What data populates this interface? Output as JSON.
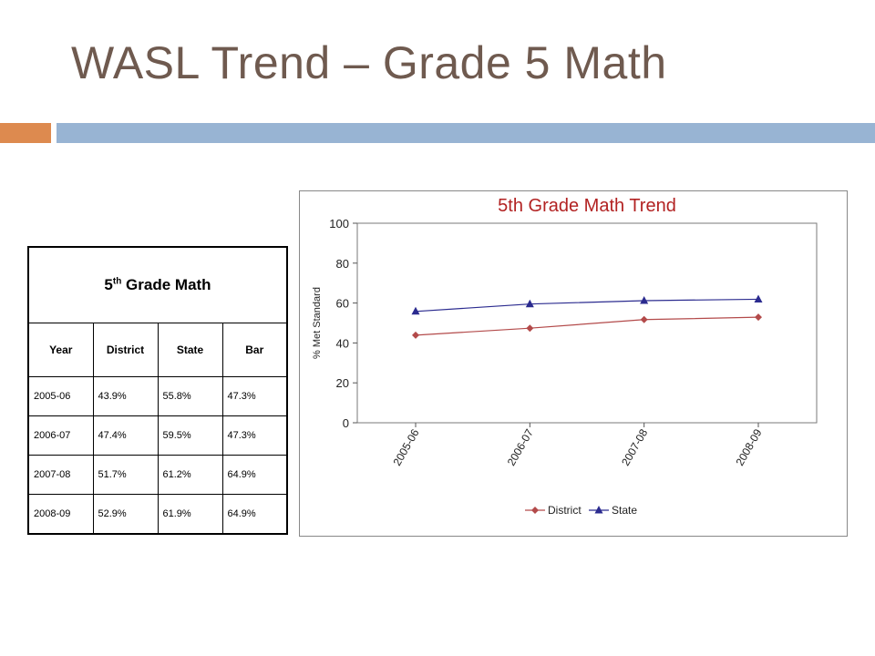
{
  "slide": {
    "title": "WASL Trend – Grade 5 Math"
  },
  "table": {
    "title_prefix": "5",
    "title_sup": "th",
    "title_suffix": " Grade Math",
    "headers": [
      "Year",
      "District",
      "State",
      "Bar"
    ],
    "rows": [
      [
        "2005-06",
        "43.9%",
        "55.8%",
        "47.3%"
      ],
      [
        "2006-07",
        "47.4%",
        "59.5%",
        "47.3%"
      ],
      [
        "2007-08",
        "51.7%",
        "61.2%",
        "64.9%"
      ],
      [
        "2008-09",
        "52.9%",
        "61.9%",
        "64.9%"
      ]
    ]
  },
  "colors": {
    "title": "#6f5a4f",
    "accent_orange": "#dd8a4f",
    "accent_blue": "#98b4d3",
    "chart_title": "#b22222",
    "district": "#b34a4a",
    "state": "#2b2b8f"
  },
  "chart_data": {
    "type": "line",
    "title": "5th Grade Math Trend",
    "xlabel": "",
    "ylabel": "% Met Standard",
    "categories": [
      "2005-06",
      "2006-07",
      "2007-08",
      "2008-09"
    ],
    "ylim": [
      0,
      100
    ],
    "yticks": [
      0,
      20,
      40,
      60,
      80,
      100
    ],
    "grid": false,
    "legend_position": "bottom",
    "series": [
      {
        "name": "District",
        "values": [
          43.9,
          47.4,
          51.7,
          52.9
        ],
        "color": "#b34a4a",
        "marker": "diamond"
      },
      {
        "name": "State",
        "values": [
          55.8,
          59.5,
          61.2,
          61.9
        ],
        "color": "#2b2b8f",
        "marker": "triangle"
      }
    ]
  }
}
